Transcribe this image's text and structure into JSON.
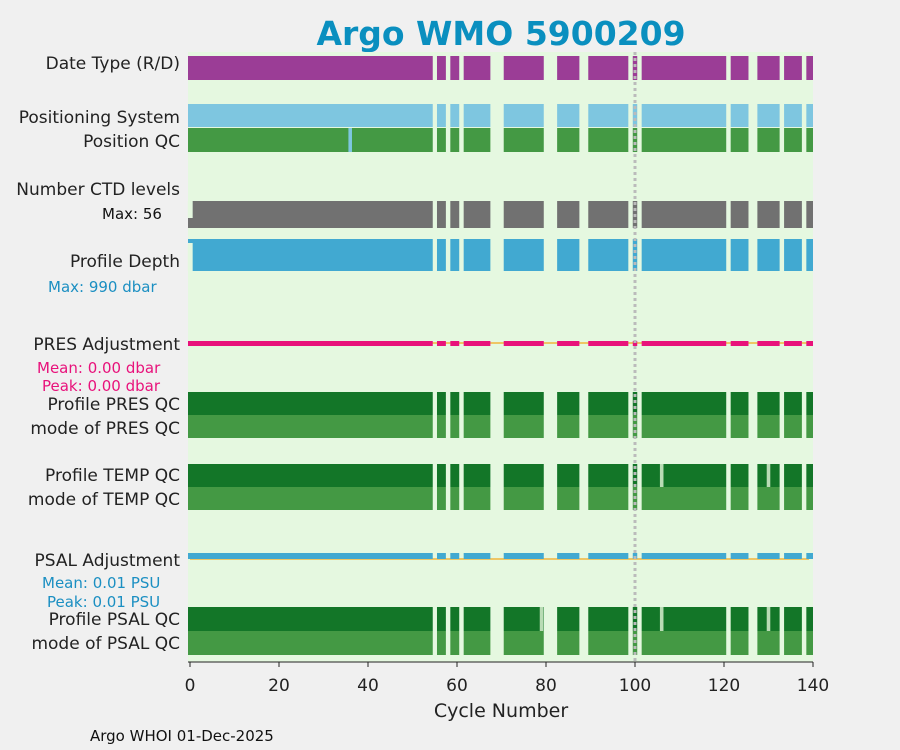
{
  "chart_data": {
    "type": "bar",
    "title": "Argo WMO 5900209",
    "xlabel": "Cycle Number",
    "xlim": [
      0,
      140
    ],
    "xticks": [
      "0",
      "20",
      "40",
      "60",
      "80",
      "100",
      "120",
      "140"
    ],
    "xtick_values": [
      0,
      20,
      40,
      60,
      80,
      100,
      120,
      140
    ],
    "highlight_cycle": 100,
    "rows": {
      "date_type": "Date Type (R/D)",
      "positioning": "Positioning System",
      "position_qc": "Position QC",
      "ctd_levels": "Number CTD levels",
      "profile_depth": "Profile Depth",
      "pres_adj": "PRES Adjustment",
      "profile_pres_qc": "Profile PRES QC",
      "mode_pres_qc": "mode of PRES QC",
      "profile_temp_qc": "Profile TEMP QC",
      "mode_temp_qc": "mode of TEMP QC",
      "psal_adj": "PSAL Adjustment",
      "profile_psal_qc": "Profile PSAL QC",
      "mode_psal_qc": "mode of PSAL QC"
    },
    "stats": {
      "ctd_max": "Max: 56",
      "depth_max": "Max:  990 dbar",
      "pres_mean": "Mean: 0.00 dbar",
      "pres_peak": "Peak: 0.00 dbar",
      "psal_mean": "Mean: 0.01 PSU",
      "psal_peak": "Peak: 0.01 PSU"
    },
    "cycle_segments": [
      [
        0,
        54
      ],
      [
        56,
        57
      ],
      [
        59,
        60
      ],
      [
        62,
        67
      ],
      [
        71,
        79
      ],
      [
        83,
        87
      ],
      [
        90,
        98
      ],
      [
        100,
        100
      ],
      [
        102,
        120
      ],
      [
        122,
        125
      ],
      [
        128,
        132
      ],
      [
        134,
        137
      ],
      [
        139,
        140
      ]
    ],
    "position_qc_gaps": [
      36
    ],
    "temp_qc_gaps": [
      106,
      130
    ],
    "psal_qc_gaps": [
      79,
      106,
      130
    ],
    "ctd_first_cycle_reduced": true,
    "colors": {
      "plot_bg": "#e5f8e0",
      "date_type": "#9b3d96",
      "positioning": "#7ec6e0",
      "qc_good": "#449944",
      "qc_profile": "#137628",
      "qc_gap": "#b9dcb5",
      "ctd": "#717171",
      "depth": "#41a9d1",
      "pres_adj": "#e8127b",
      "psal_adj": "#41a9d1",
      "zero_line": "#f2b53c",
      "highlight": "#bbbbbb",
      "title": "#0a8fbf"
    }
  },
  "footer": "Argo WHOI 01-Dec-2025"
}
